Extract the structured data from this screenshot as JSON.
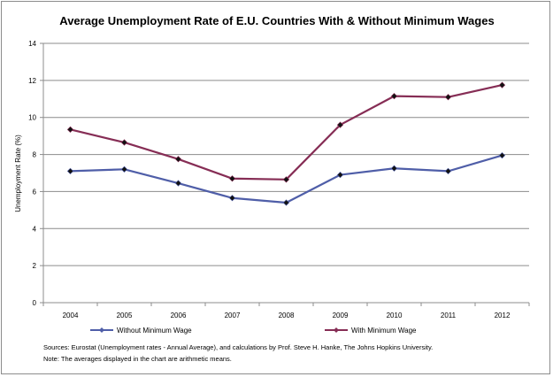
{
  "chart_data": {
    "type": "line",
    "title": "Average Unemployment Rate of E.U. Countries With & Without Minimum Wages",
    "ylabel": "Unemployment Rate (%)",
    "xlabel": "",
    "categories": [
      "2004",
      "2005",
      "2006",
      "2007",
      "2008",
      "2009",
      "2010",
      "2011",
      "2012"
    ],
    "ylim": [
      0,
      14
    ],
    "yticks": [
      "0",
      "2",
      "4",
      "6",
      "8",
      "10",
      "12",
      "14"
    ],
    "grid": true,
    "legend_position": "bottom",
    "series": [
      {
        "name": "Without Minimum Wage",
        "color": "#4f5ea8",
        "values": [
          7.1,
          7.2,
          6.45,
          5.65,
          5.4,
          6.9,
          7.25,
          7.1,
          7.95
        ]
      },
      {
        "name": "With Minimum Wage",
        "color": "#862d55",
        "values": [
          9.35,
          8.65,
          7.75,
          6.7,
          6.65,
          9.6,
          11.15,
          11.1,
          11.75
        ]
      }
    ],
    "notes": [
      "Sources: Eurostat (Unemployment rates - Annual Average), and calculations by Prof. Steve H. Hanke, The Johns Hopkins University.",
      "Note: The averages displayed in the chart are arithmetic means."
    ]
  }
}
